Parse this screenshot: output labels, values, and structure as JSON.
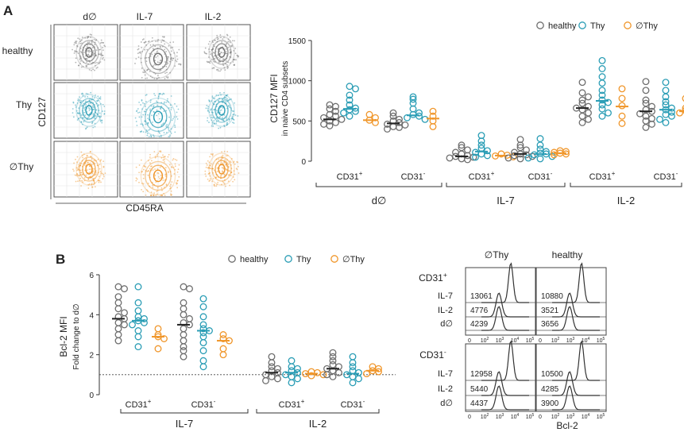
{
  "colors": {
    "healthy": "#6e6e6e",
    "thy": "#2a9db5",
    "athy": "#f0962a"
  },
  "panel_a": {
    "label": "A",
    "flow": {
      "col_titles": [
        "d∅",
        "IL-7",
        "IL-2"
      ],
      "row_titles": [
        "healthy",
        "Thy",
        "∅Thy"
      ],
      "x_axis": "CD45RA",
      "y_axis": "CD127"
    }
  },
  "panel_b": {
    "label": "B",
    "histo": {
      "col_titles": [
        "∅Thy",
        "healthy"
      ],
      "row_groups": [
        {
          "label": "CD31",
          "sup": "+",
          "lines": [
            "IL-7",
            "IL-2",
            "d∅"
          ],
          "values": [
            [
              "13061",
              "4776",
              "4239"
            ],
            [
              "10880",
              "3521",
              "3656"
            ]
          ]
        },
        {
          "label": "CD31",
          "sup": "-",
          "lines": [
            "IL-7",
            "IL-2",
            "d∅"
          ],
          "values": [
            [
              "12958",
              "5440",
              "4437"
            ],
            [
              "10500",
              "4285",
              "3900"
            ]
          ]
        }
      ],
      "x_ticks": [
        "0",
        "10",
        "10",
        "10",
        "10"
      ],
      "x_tick_sups": [
        "",
        "2",
        "3",
        "4",
        "5"
      ],
      "x_axis": "Bcl-2"
    }
  },
  "chart_data": [
    {
      "id": "cd127_mfi",
      "type": "scatter",
      "title": "",
      "ylabel": "CD127 MFI",
      "ylabel2": "in naive CD4 subsets",
      "ylim": [
        0,
        1500
      ],
      "yticks": [
        0,
        500,
        1000,
        1500
      ],
      "legend": [
        "healthy",
        "Thy",
        "∅Thy"
      ],
      "legend_position": "top-right",
      "conditions": [
        "d∅",
        "IL-7",
        "IL-2"
      ],
      "subset_labels": [
        "CD31",
        "CD31"
      ],
      "subset_sups": [
        "+",
        "-"
      ],
      "groups": [
        {
          "condition": "d∅",
          "subset": "CD31+",
          "series": [
            {
              "name": "healthy",
              "median": 520,
              "values": [
                700,
                680,
                650,
                620,
                580,
                560,
                540,
                520,
                500,
                480,
                460,
                440
              ]
            },
            {
              "name": "Thy",
              "median": 650,
              "values": [
                930,
                900,
                820,
                760,
                700,
                660,
                640,
                620,
                600,
                560
              ]
            },
            {
              "name": "∅Thy",
              "median": 510,
              "values": [
                580,
                540,
                510,
                480
              ]
            }
          ]
        },
        {
          "condition": "d∅",
          "subset": "CD31-",
          "series": [
            {
              "name": "healthy",
              "median": 470,
              "values": [
                600,
                560,
                520,
                500,
                480,
                460,
                450,
                430,
                420,
                400
              ]
            },
            {
              "name": "Thy",
              "median": 570,
              "values": [
                800,
                770,
                720,
                650,
                600,
                580,
                560,
                540,
                520
              ]
            },
            {
              "name": "∅Thy",
              "median": 530,
              "values": [
                620,
                560,
                500,
                430
              ]
            }
          ]
        },
        {
          "condition": "IL-7",
          "subset": "CD31+",
          "series": [
            {
              "name": "healthy",
              "median": 60,
              "values": [
                200,
                170,
                140,
                110,
                90,
                70,
                60,
                50,
                40,
                30,
                20
              ]
            },
            {
              "name": "Thy",
              "median": 120,
              "values": [
                320,
                250,
                200,
                160,
                130,
                110,
                90,
                70,
                50
              ]
            },
            {
              "name": "∅Thy",
              "median": 70,
              "values": [
                90,
                75,
                65,
                55
              ]
            }
          ]
        },
        {
          "condition": "IL-7",
          "subset": "CD31-",
          "series": [
            {
              "name": "healthy",
              "median": 90,
              "values": [
                270,
                200,
                170,
                140,
                110,
                90,
                80,
                70,
                60,
                40,
                30
              ]
            },
            {
              "name": "Thy",
              "median": 90,
              "values": [
                280,
                200,
                150,
                120,
                100,
                90,
                80,
                60,
                40,
                30
              ]
            },
            {
              "name": "∅Thy",
              "median": 100,
              "values": [
                130,
                120,
                110,
                100,
                90,
                80
              ]
            }
          ]
        },
        {
          "condition": "IL-2",
          "subset": "CD31+",
          "series": [
            {
              "name": "healthy",
              "median": 660,
              "values": [
                980,
                850,
                800,
                760,
                720,
                680,
                660,
                640,
                600,
                560,
                520,
                480
              ]
            },
            {
              "name": "Thy",
              "median": 750,
              "values": [
                1250,
                1150,
                1050,
                970,
                880,
                820,
                760,
                730,
                700,
                650,
                600,
                560
              ]
            },
            {
              "name": "∅Thy",
              "median": 680,
              "values": [
                900,
                780,
                690,
                560,
                470
              ]
            }
          ]
        },
        {
          "condition": "IL-2",
          "subset": "CD31-",
          "series": [
            {
              "name": "healthy",
              "median": 620,
              "values": [
                990,
                880,
                760,
                720,
                680,
                640,
                620,
                590,
                560,
                530,
                500,
                460,
                420
              ]
            },
            {
              "name": "Thy",
              "median": 640,
              "values": [
                980,
                880,
                800,
                740,
                700,
                660,
                640,
                610,
                580,
                560,
                520,
                480
              ]
            },
            {
              "name": "∅Thy",
              "median": 620,
              "values": [
                780,
                660,
                630,
                620,
                600
              ]
            }
          ]
        }
      ]
    },
    {
      "id": "bcl2_mfi",
      "type": "scatter",
      "ylabel": "Bcl-2 MFI",
      "ylabel2": "Fold change to d∅",
      "ylim": [
        0,
        6
      ],
      "yticks": [
        0,
        2,
        4,
        6
      ],
      "reference_line": 1,
      "legend": [
        "healthy",
        "Thy",
        "∅Thy"
      ],
      "legend_position": "top-right",
      "conditions": [
        "IL-7",
        "IL-2"
      ],
      "subset_labels": [
        "CD31",
        "CD31"
      ],
      "subset_sups": [
        "+",
        "-"
      ],
      "groups": [
        {
          "condition": "IL-7",
          "subset": "CD31+",
          "series": [
            {
              "name": "healthy",
              "median": 3.8,
              "values": [
                5.4,
                5.3,
                4.9,
                4.6,
                4.3,
                4.1,
                3.9,
                3.8,
                3.6,
                3.5,
                3.3,
                3.0,
                2.7
              ]
            },
            {
              "name": "Thy",
              "median": 3.7,
              "values": [
                5.4,
                4.6,
                4.2,
                3.9,
                3.8,
                3.7,
                3.6,
                3.5,
                3.2,
                2.9,
                2.4
              ]
            },
            {
              "name": "∅Thy",
              "median": 2.9,
              "values": [
                3.3,
                3.0,
                2.9,
                2.8,
                2.3
              ]
            }
          ]
        },
        {
          "condition": "IL-7",
          "subset": "CD31-",
          "series": [
            {
              "name": "healthy",
              "median": 3.5,
              "values": [
                5.4,
                5.3,
                4.6,
                4.3,
                4.0,
                3.8,
                3.6,
                3.5,
                3.3,
                3.0,
                2.7,
                2.4,
                2.2,
                1.9
              ]
            },
            {
              "name": "Thy",
              "median": 3.2,
              "values": [
                4.8,
                4.4,
                3.9,
                3.5,
                3.3,
                3.2,
                3.1,
                2.9,
                2.6,
                2.2,
                1.7,
                1.4
              ]
            },
            {
              "name": "∅Thy",
              "median": 2.7,
              "values": [
                3.0,
                2.8,
                2.7,
                2.3,
                2.0
              ]
            }
          ]
        },
        {
          "condition": "IL-2",
          "subset": "CD31+",
          "series": [
            {
              "name": "healthy",
              "median": 1.1,
              "values": [
                1.9,
                1.6,
                1.4,
                1.3,
                1.2,
                1.1,
                1.0,
                0.9,
                0.8,
                0.7
              ]
            },
            {
              "name": "Thy",
              "median": 1.1,
              "values": [
                1.7,
                1.4,
                1.3,
                1.2,
                1.1,
                1.0,
                0.9,
                0.8,
                0.6
              ]
            },
            {
              "name": "∅Thy",
              "median": 1.05,
              "values": [
                1.15,
                1.1,
                1.05,
                1.0,
                0.95
              ]
            }
          ]
        },
        {
          "condition": "IL-2",
          "subset": "CD31-",
          "series": [
            {
              "name": "healthy",
              "median": 1.3,
              "values": [
                2.1,
                1.9,
                1.7,
                1.5,
                1.4,
                1.3,
                1.2,
                1.1,
                1.0,
                0.9
              ]
            },
            {
              "name": "Thy",
              "median": 1.05,
              "values": [
                1.9,
                1.6,
                1.4,
                1.2,
                1.1,
                1.0,
                0.9,
                0.8,
                0.6
              ]
            },
            {
              "name": "∅Thy",
              "median": 1.2,
              "values": [
                1.4,
                1.3,
                1.2,
                1.15,
                1.05
              ]
            }
          ]
        }
      ]
    }
  ]
}
